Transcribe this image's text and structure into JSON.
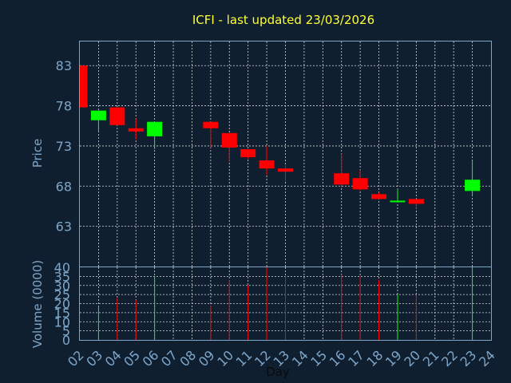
{
  "chart_data": [
    {
      "type": "candlestick",
      "title": "ICFI - last updated 23/03/2026",
      "ylabel": "Price",
      "ylim": [
        58,
        86
      ],
      "yticks": [
        63,
        68,
        73,
        78,
        83
      ],
      "xlim": [
        2,
        24
      ],
      "xticks": [
        "02",
        "03",
        "04",
        "05",
        "06",
        "07",
        "08",
        "09",
        "10",
        "11",
        "12",
        "13",
        "14",
        "15",
        "16",
        "17",
        "18",
        "19",
        "20",
        "21",
        "22",
        "23",
        "24"
      ],
      "grid": true,
      "up_color": "#00ff00",
      "down_color": "#ff0000",
      "candles": [
        {
          "day": 2,
          "open": 83.0,
          "close": 77.8,
          "high": 83.0,
          "low": 77.8
        },
        {
          "day": 3,
          "open": 76.2,
          "close": 77.4,
          "high": 77.4,
          "low": 74.8
        },
        {
          "day": 4,
          "open": 77.8,
          "close": 75.6,
          "high": 77.8,
          "low": 75.6
        },
        {
          "day": 5,
          "open": 75.2,
          "close": 74.8,
          "high": 76.4,
          "low": 73.8
        },
        {
          "day": 6,
          "open": 74.2,
          "close": 76.0,
          "high": 76.0,
          "low": 72.6
        },
        {
          "day": 9,
          "open": 76.0,
          "close": 75.2,
          "high": 76.0,
          "low": 72.8
        },
        {
          "day": 10,
          "open": 74.6,
          "close": 72.8,
          "high": 74.6,
          "low": 71.0
        },
        {
          "day": 11,
          "open": 72.6,
          "close": 71.6,
          "high": 72.6,
          "low": 71.4
        },
        {
          "day": 12,
          "open": 71.2,
          "close": 70.2,
          "high": 73.0,
          "low": 69.4
        },
        {
          "day": 13,
          "open": 70.2,
          "close": 69.8,
          "high": 70.6,
          "low": 68.6
        },
        {
          "day": 16,
          "open": 69.6,
          "close": 68.2,
          "high": 72.0,
          "low": 67.8
        },
        {
          "day": 17,
          "open": 69.0,
          "close": 67.6,
          "high": 70.0,
          "low": 67.4
        },
        {
          "day": 18,
          "open": 67.0,
          "close": 66.4,
          "high": 67.2,
          "low": 66.4
        },
        {
          "day": 19,
          "open": 66.0,
          "close": 66.2,
          "high": 67.6,
          "low": 66.0
        },
        {
          "day": 20,
          "open": 66.4,
          "close": 65.8,
          "high": 66.4,
          "low": 65.2
        },
        {
          "day": 23,
          "open": 67.4,
          "close": 68.8,
          "high": 71.2,
          "low": 66.8
        }
      ]
    },
    {
      "type": "bar",
      "ylabel": "Volume (0000)",
      "xlabel": "Day",
      "ylim": [
        0,
        40
      ],
      "yticks": [
        0,
        5,
        10,
        15,
        20,
        25,
        30,
        35,
        40
      ],
      "xlim": [
        2,
        24
      ],
      "grid": true,
      "bars": [
        {
          "day": 3,
          "value": 18,
          "direction": "up"
        },
        {
          "day": 4,
          "value": 23,
          "direction": "down"
        },
        {
          "day": 5,
          "value": 22,
          "direction": "down"
        },
        {
          "day": 6,
          "value": 35,
          "direction": "up"
        },
        {
          "day": 9,
          "value": 19,
          "direction": "down"
        },
        {
          "day": 10,
          "value": 33,
          "direction": "down"
        },
        {
          "day": 11,
          "value": 30,
          "direction": "down"
        },
        {
          "day": 12,
          "value": 40,
          "direction": "down"
        },
        {
          "day": 13,
          "value": 35,
          "direction": "down"
        },
        {
          "day": 16,
          "value": 36,
          "direction": "down"
        },
        {
          "day": 17,
          "value": 35,
          "direction": "down"
        },
        {
          "day": 18,
          "value": 33,
          "direction": "down"
        },
        {
          "day": 19,
          "value": 25,
          "direction": "up"
        },
        {
          "day": 20,
          "value": 25,
          "direction": "down"
        },
        {
          "day": 23,
          "value": 40,
          "direction": "up"
        }
      ]
    }
  ]
}
